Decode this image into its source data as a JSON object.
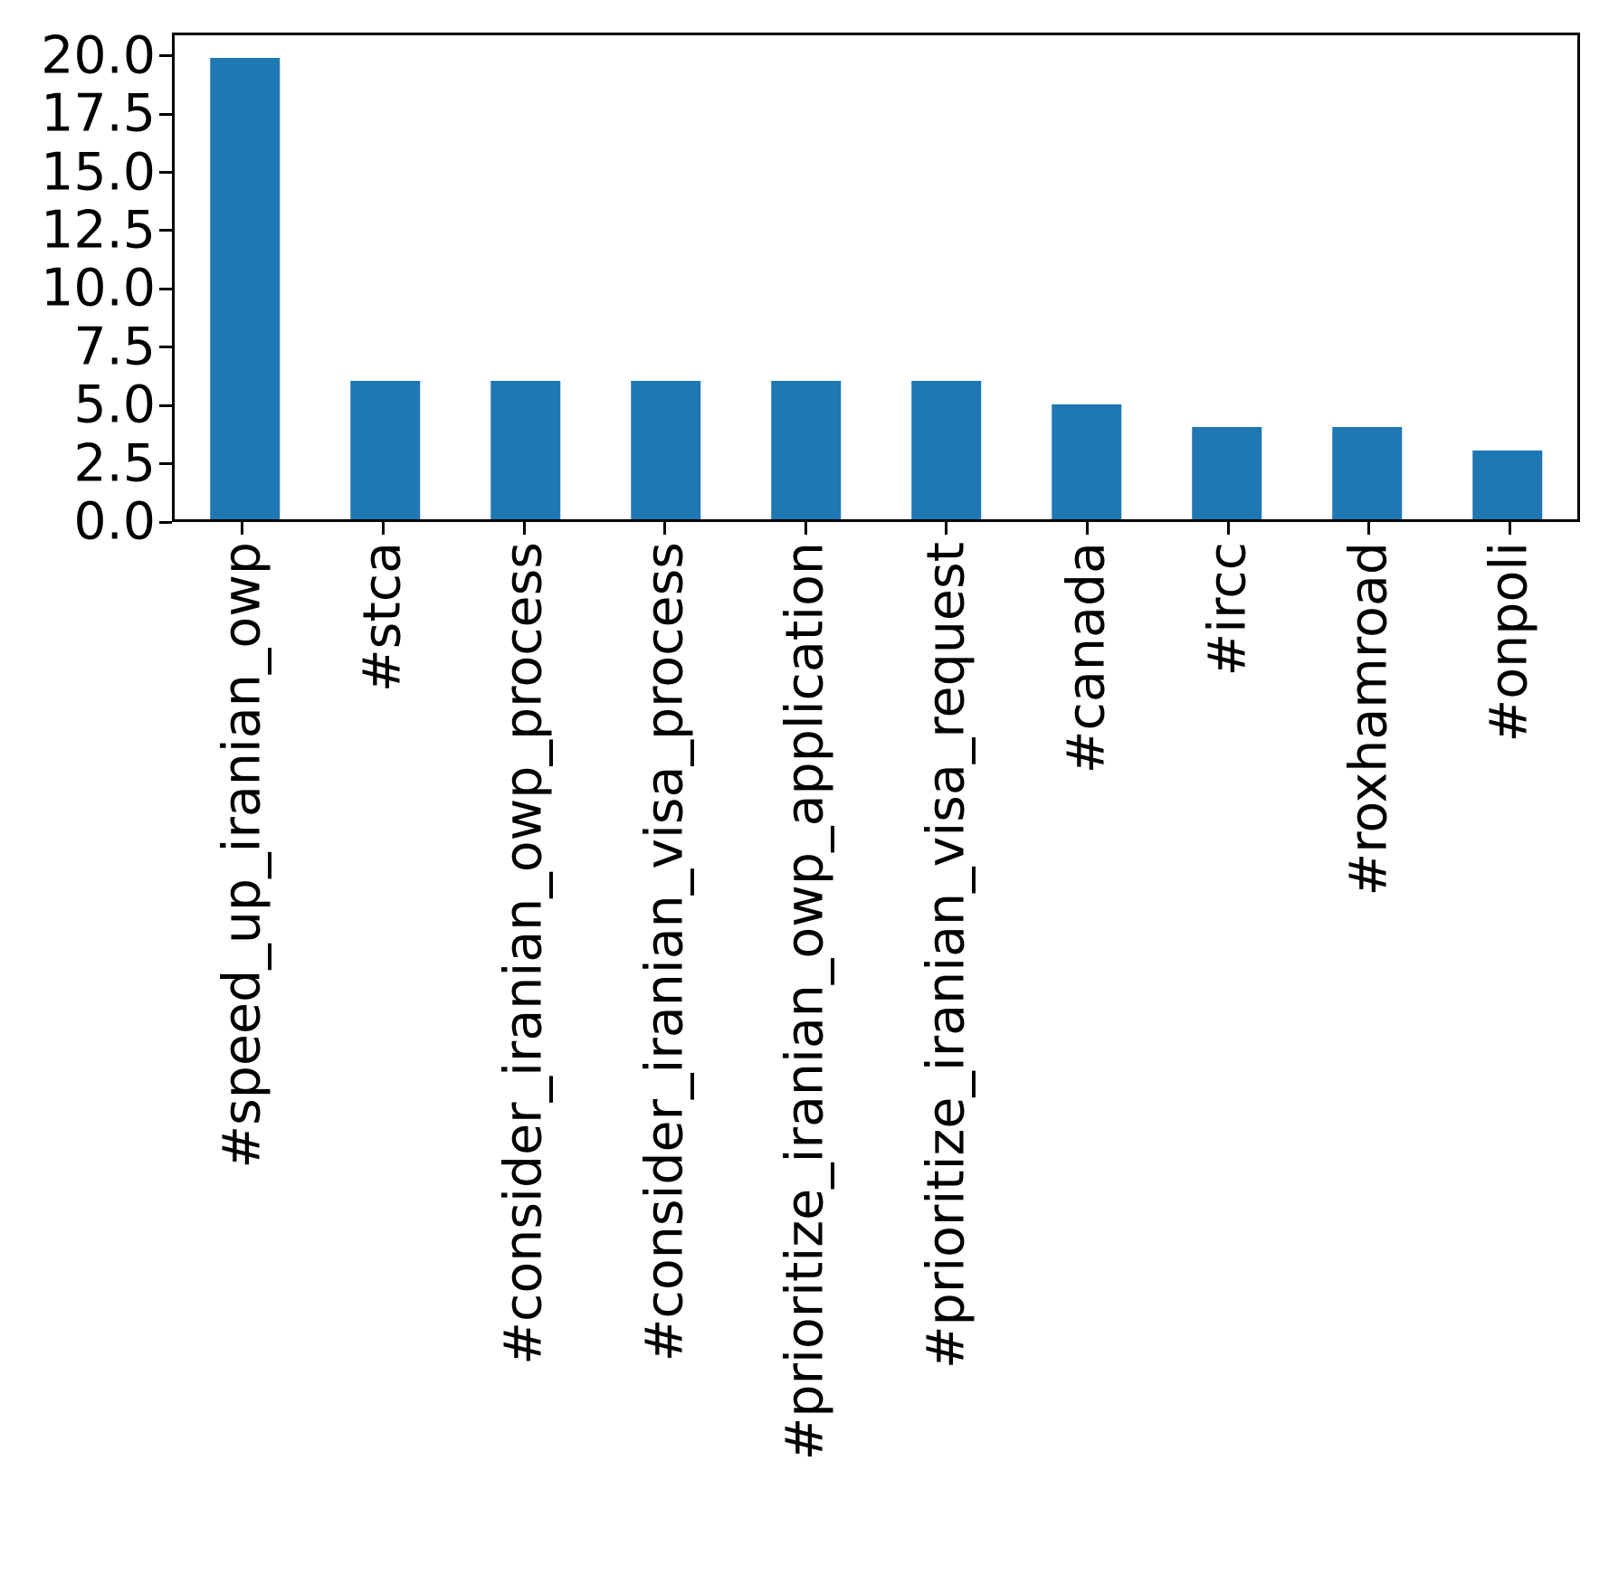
{
  "chart_data": {
    "type": "bar",
    "categories": [
      "#speed_up_iranian_owp",
      "#stca",
      "#consider_iranian_owp_process",
      "#consider_iranian_visa_process",
      "#prioritize_iranian_owp_application",
      "#prioritize_iranian_visa_request",
      "#canada",
      "#ircc",
      "#roxhamroad",
      "#onpoli"
    ],
    "values": [
      20,
      6,
      6,
      6,
      6,
      6,
      5,
      4,
      4,
      3
    ],
    "title": "",
    "xlabel": "",
    "ylabel": "",
    "y_tick_values": [
      0.0,
      2.5,
      5.0,
      7.5,
      10.0,
      12.5,
      15.0,
      17.5,
      20.0
    ],
    "y_tick_labels": [
      "0.0",
      "2.5",
      "5.0",
      "7.5",
      "10.0",
      "12.5",
      "15.0",
      "17.5",
      "20.0"
    ],
    "ylim": [
      0,
      21
    ],
    "bar_color": "#1f77b4",
    "bar_width_fraction": 0.5,
    "x_tick_rotation": 90,
    "grid": false,
    "legend_position": "none"
  }
}
